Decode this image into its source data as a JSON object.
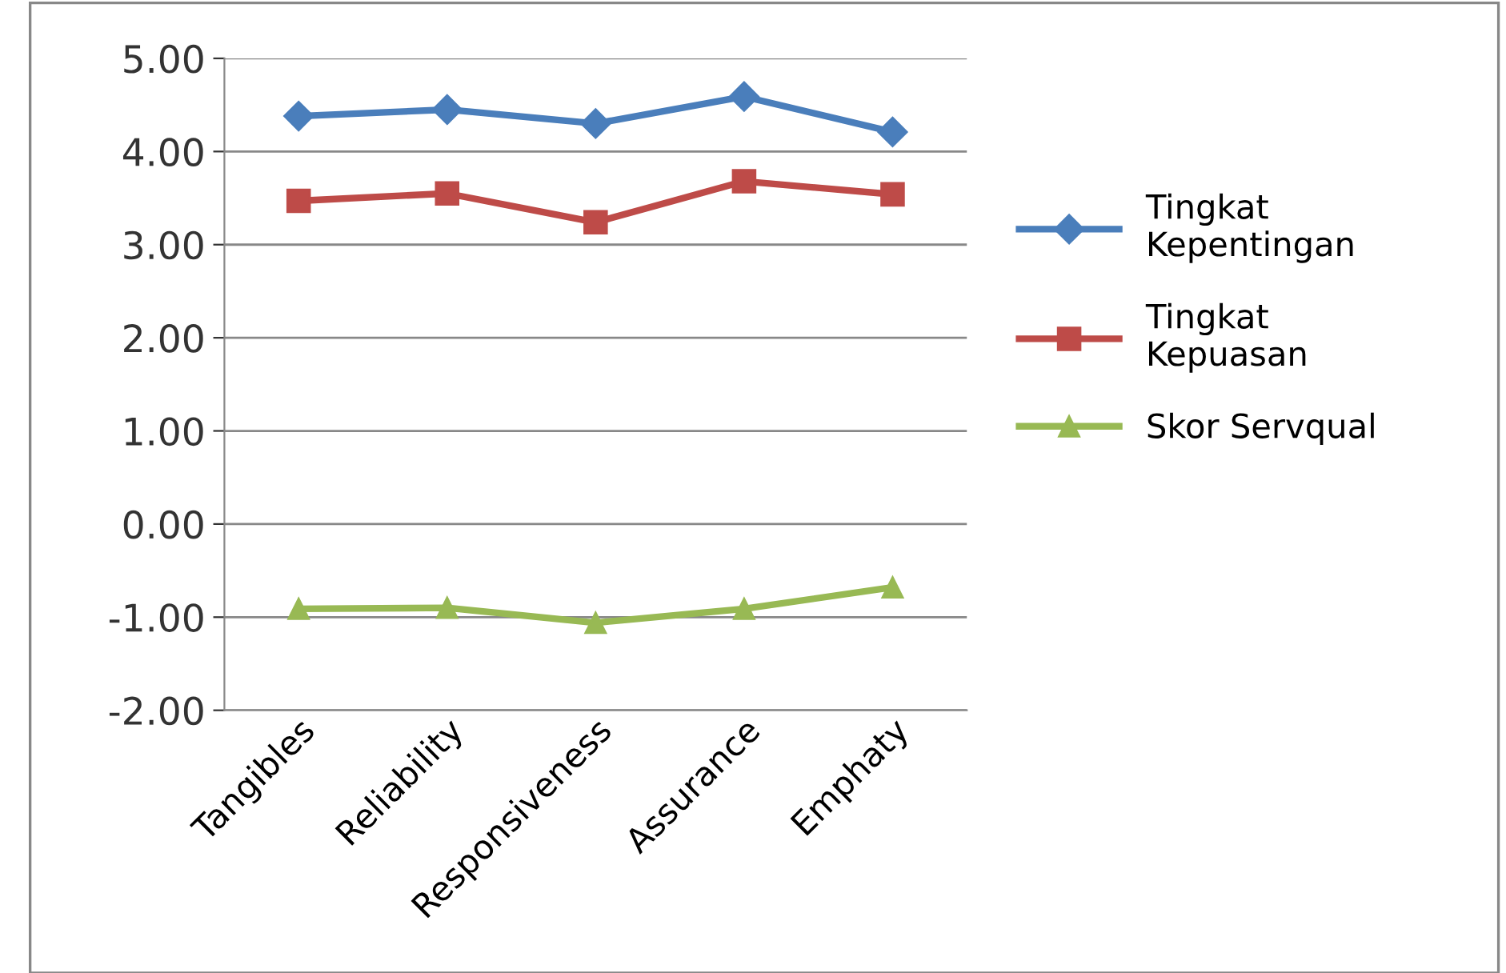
{
  "chart_data": {
    "type": "line",
    "categories": [
      "Tangibles",
      "Reliability",
      "Responsiveness",
      "Assurance",
      "Emphaty"
    ],
    "series": [
      {
        "name": "Tingkat\nKepentingan",
        "color": "#4a7ebb",
        "marker": "diamond",
        "values": [
          4.38,
          4.45,
          4.3,
          4.59,
          4.21
        ]
      },
      {
        "name": "Tingkat\nKepuasan",
        "color": "#be4b48",
        "marker": "square",
        "values": [
          3.47,
          3.55,
          3.24,
          3.68,
          3.54
        ]
      },
      {
        "name": "Skor Servqual",
        "color": "#98b954",
        "marker": "triangle",
        "values": [
          -0.91,
          -0.9,
          -1.06,
          -0.91,
          -0.68
        ]
      }
    ],
    "ylim": [
      -2,
      5
    ],
    "yticks": [
      {
        "value": -2,
        "label": "-2.00"
      },
      {
        "value": -1,
        "label": "-1.00"
      },
      {
        "value": 0,
        "label": "0.00"
      },
      {
        "value": 1,
        "label": "1.00"
      },
      {
        "value": 2,
        "label": "2.00"
      },
      {
        "value": 3,
        "label": "3.00"
      },
      {
        "value": 4,
        "label": "4.00"
      },
      {
        "value": 5,
        "label": "5.00"
      }
    ],
    "grid": "y",
    "legend": "right"
  }
}
